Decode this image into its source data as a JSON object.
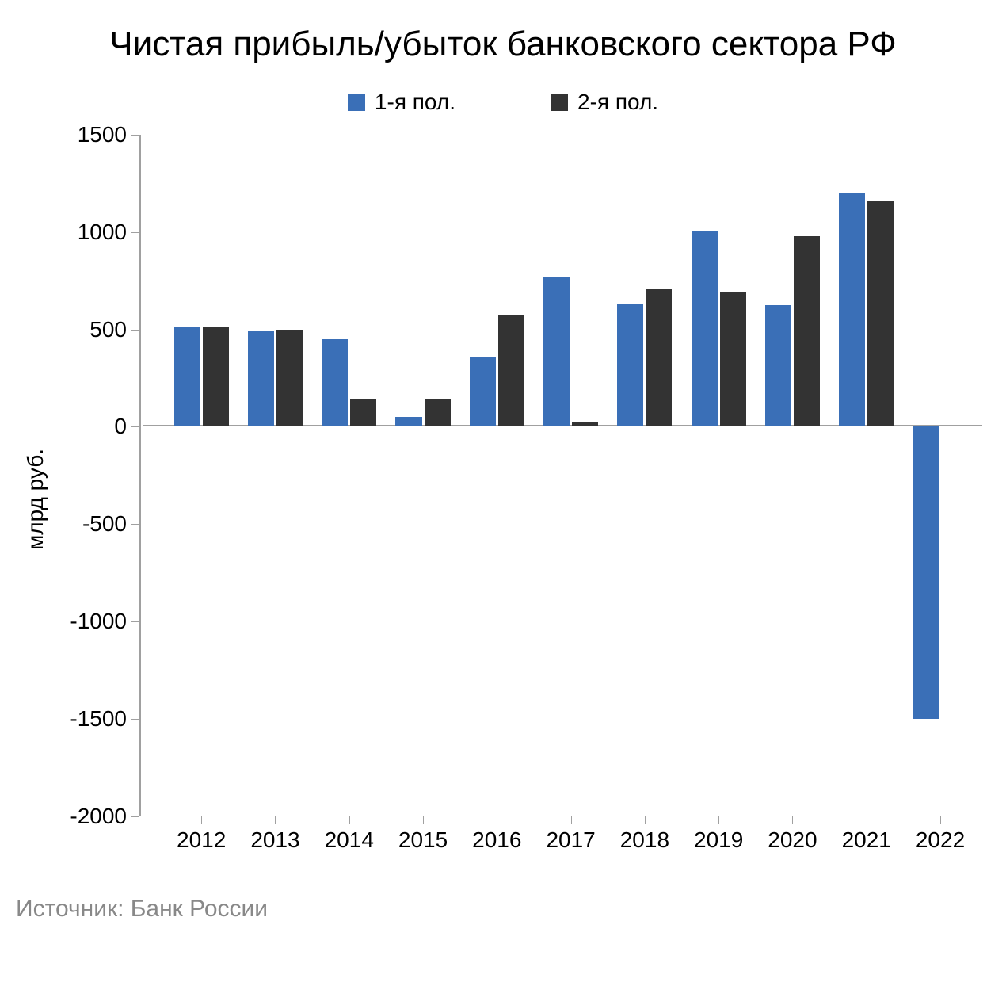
{
  "chart": {
    "type": "bar",
    "title": "Чистая прибыль/убыток банковского сектора РФ",
    "title_fontsize": 44,
    "ylabel": "млрд руб.",
    "label_fontsize": 28,
    "tick_fontsize": 28,
    "legend_fontsize": 28,
    "background_color": "#ffffff",
    "axis_color": "#a0a0a0",
    "ylim": [
      -2000,
      1500
    ],
    "ytick_step": 500,
    "yticks": [
      -2000,
      -1500,
      -1000,
      -500,
      0,
      500,
      1000,
      1500
    ],
    "categories": [
      "2012",
      "2013",
      "2014",
      "2015",
      "2016",
      "2017",
      "2018",
      "2019",
      "2020",
      "2021",
      "2022"
    ],
    "series": [
      {
        "name": "1-я пол.",
        "color": "#3a6fb7",
        "values": [
          510,
          490,
          450,
          50,
          360,
          770,
          630,
          1005,
          625,
          1200,
          -1500
        ]
      },
      {
        "name": "2-я пол.",
        "color": "#333333",
        "values": [
          510,
          500,
          140,
          145,
          570,
          20,
          710,
          695,
          980,
          1160,
          null
        ]
      }
    ],
    "bar_group_width_pct": 6.8,
    "group_gap_pct": 2.0
  },
  "source_label": "Источник: Банк России",
  "source_color": "#888888",
  "source_fontsize": 30
}
